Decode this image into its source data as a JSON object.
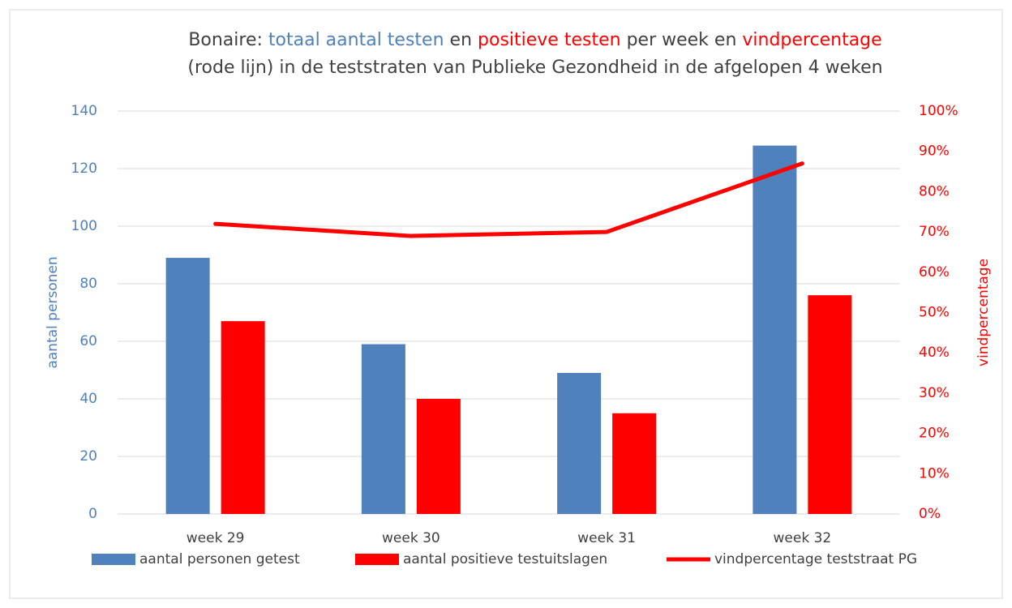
{
  "chart_data": {
    "type": "combo",
    "title_lines": [
      [
        {
          "text": "Bonaire: ",
          "color": "#404040"
        },
        {
          "text": "totaal aantal testen",
          "color": "#4f81bd"
        },
        {
          "text": " en ",
          "color": "#404040"
        },
        {
          "text": "positieve testen",
          "color": "#ff0000"
        },
        {
          "text": " per week en ",
          "color": "#404040"
        },
        {
          "text": "vindpercentage",
          "color": "#ff0000"
        }
      ],
      [
        {
          "text": "(rode lijn) in de teststraten van Publieke Gezondheid in de afgelopen 4 weken",
          "color": "#404040"
        }
      ]
    ],
    "ylabel": "aantal personen",
    "ylabel_color": "#4f81bd",
    "y2label": "vindpercentage",
    "y2label_color": "#ff0000",
    "categories": [
      "week 29",
      "week 30",
      "week 31",
      "week 32"
    ],
    "series": [
      {
        "name": "aantal personen getest",
        "type": "bar",
        "color": "#4f81bd",
        "values": [
          89,
          59,
          49,
          128
        ]
      },
      {
        "name": "aantal positieve testuitslagen",
        "type": "bar",
        "color": "#ff0000",
        "values": [
          67,
          40,
          35,
          76
        ]
      },
      {
        "name": "vindpercentage teststraat PG",
        "type": "line",
        "axis": "y2",
        "color": "#ff0000",
        "values": [
          72,
          69,
          70,
          87
        ]
      }
    ],
    "ylim": [
      0,
      140
    ],
    "yticks": [
      0,
      20,
      40,
      60,
      80,
      100,
      120,
      140
    ],
    "y2lim": [
      0,
      100
    ],
    "y2ticks": [
      {
        "value": 0,
        "label": "0%"
      },
      {
        "value": 10,
        "label": "10%"
      },
      {
        "value": 20,
        "label": "20%"
      },
      {
        "value": 30,
        "label": "30%"
      },
      {
        "value": 40,
        "label": "40%"
      },
      {
        "value": 50,
        "label": "50%"
      },
      {
        "value": 60,
        "label": "60%"
      },
      {
        "value": 70,
        "label": "70%"
      },
      {
        "value": 80,
        "label": "80%"
      },
      {
        "value": 90,
        "label": "90%"
      },
      {
        "value": 100,
        "label": "100%"
      }
    ],
    "grid": true,
    "legend": "bottom"
  }
}
